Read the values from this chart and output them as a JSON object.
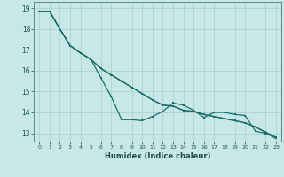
{
  "title": "",
  "xlabel": "Humidex (Indice chaleur)",
  "ylabel": "",
  "background_color": "#c8e8e8",
  "grid_color": "#a8cccc",
  "line_color": "#1a6e6a",
  "xlim": [
    -0.5,
    23.5
  ],
  "ylim": [
    12.6,
    19.3
  ],
  "yticks": [
    13,
    14,
    15,
    16,
    17,
    18,
    19
  ],
  "xticks": [
    0,
    1,
    2,
    3,
    4,
    5,
    6,
    7,
    8,
    9,
    10,
    11,
    12,
    13,
    14,
    15,
    16,
    17,
    18,
    19,
    20,
    21,
    22,
    23
  ],
  "line1_x": [
    0,
    1,
    2,
    3,
    4,
    5,
    6,
    7,
    8,
    9,
    10,
    11,
    12,
    13,
    14,
    15,
    16,
    17,
    18,
    19,
    20,
    21,
    22,
    23
  ],
  "line1_y": [
    18.85,
    18.85,
    18.0,
    17.2,
    16.85,
    16.55,
    16.1,
    15.8,
    15.5,
    15.2,
    14.9,
    14.6,
    14.35,
    14.3,
    14.1,
    14.05,
    13.9,
    13.8,
    13.7,
    13.6,
    13.5,
    13.3,
    13.05,
    12.8
  ],
  "line2_x": [
    0,
    1,
    2,
    3,
    4,
    5,
    6,
    7,
    8,
    9,
    10,
    11,
    12,
    13,
    14,
    15,
    16,
    17,
    18,
    19,
    20,
    21,
    22,
    23
  ],
  "line2_y": [
    18.85,
    18.85,
    18.0,
    17.2,
    16.85,
    16.55,
    15.65,
    14.75,
    13.65,
    13.65,
    13.6,
    13.8,
    14.05,
    14.45,
    14.35,
    14.1,
    13.75,
    14.0,
    14.0,
    13.9,
    13.85,
    13.1,
    13.0,
    12.75
  ],
  "line3_x": [
    0,
    1,
    2,
    3,
    4,
    5,
    6,
    7,
    8,
    9,
    10,
    11,
    12,
    13,
    14,
    15,
    16,
    17,
    18,
    19,
    20,
    21,
    22,
    23
  ],
  "line3_y": [
    18.85,
    18.85,
    18.0,
    17.2,
    16.85,
    16.55,
    16.1,
    15.8,
    15.5,
    15.2,
    14.9,
    14.6,
    14.35,
    14.3,
    14.1,
    14.05,
    13.9,
    13.8,
    13.7,
    13.6,
    13.5,
    13.3,
    13.05,
    12.8
  ]
}
